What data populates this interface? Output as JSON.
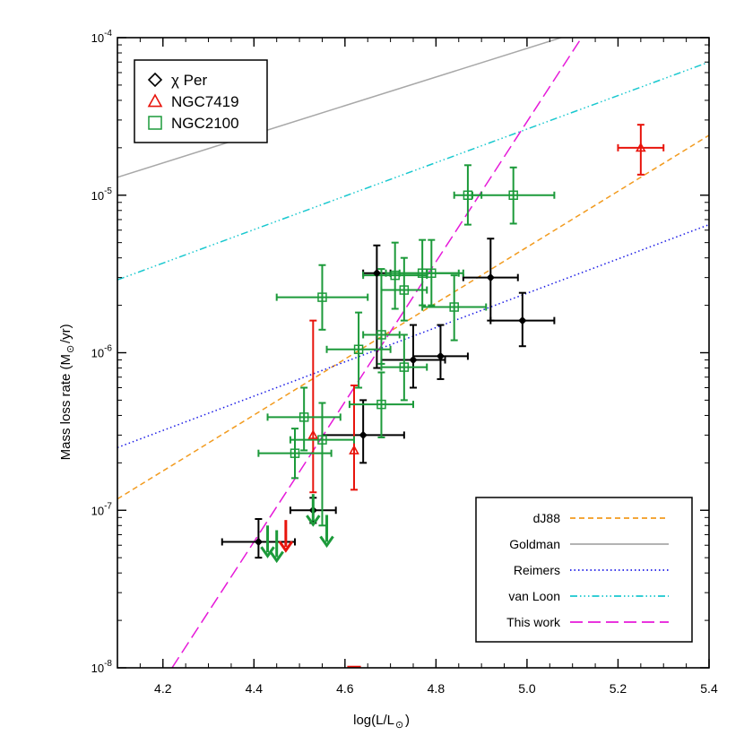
{
  "chart_data": {
    "type": "scatter",
    "xlabel": "log(L/L",
    "xlabel_sub": "⊙",
    "xlabel_end": ")",
    "ylabel": "Mass loss rate (M",
    "ylabel_sub": "⊙",
    "ylabel_end": "/yr)",
    "xlim": [
      4.1,
      5.4
    ],
    "ylim_log10": [
      -8,
      -4
    ],
    "y_scale": "log",
    "x_ticks": [
      4.2,
      4.4,
      4.6,
      4.8,
      5.0,
      5.2,
      5.4
    ],
    "x_tick_labels": [
      "4.2",
      "4.4",
      "4.6",
      "4.8",
      "5.0",
      "5.2",
      "5.4"
    ],
    "y_tick_labels": [
      {
        "exp": -8,
        "base": "10",
        "power": "-8"
      },
      {
        "exp": -7,
        "base": "10",
        "power": "-7"
      },
      {
        "exp": -6,
        "base": "10",
        "power": "-6"
      },
      {
        "exp": -5,
        "base": "10",
        "power": "-5"
      },
      {
        "exp": -4,
        "base": "10",
        "power": "-4"
      }
    ],
    "series": [
      {
        "name": "χ Per",
        "marker": "diamond",
        "color": "#000000",
        "points": [
          {
            "x": 4.41,
            "y": 6.3e-08,
            "xerr": 0.08,
            "ylo": 5e-08,
            "yhi": 8.8e-08
          },
          {
            "x": 4.53,
            "y": 1e-07,
            "xerr": 0.05,
            "ylo": 8.3e-08,
            "yhi": 1.2e-07
          },
          {
            "x": 4.64,
            "y": 3e-07,
            "xerr": 0.09,
            "ylo": 2e-07,
            "yhi": 5e-07
          },
          {
            "x": 4.67,
            "y": 3.2e-06,
            "xerr": 0.03,
            "ylo": 8e-07,
            "yhi": 4.8e-06
          },
          {
            "x": 4.75,
            "y": 9e-07,
            "xerr": 0.07,
            "ylo": 6e-07,
            "yhi": 1.5e-06
          },
          {
            "x": 4.81,
            "y": 9.5e-07,
            "xerr": 0.06,
            "ylo": 6.8e-07,
            "yhi": 1.5e-06
          },
          {
            "x": 4.92,
            "y": 3e-06,
            "xerr": 0.06,
            "ylo": 1.6e-06,
            "yhi": 5.3e-06
          },
          {
            "x": 4.99,
            "y": 1.6e-06,
            "xerr": 0.07,
            "ylo": 1.1e-06,
            "yhi": 2.4e-06
          }
        ],
        "upper_limits": []
      },
      {
        "name": "NGC7419",
        "marker": "triangle",
        "color": "#e8140c",
        "points": [
          {
            "x": 4.53,
            "y": 3e-07,
            "xerr": 0.0,
            "ylo": 1.3e-07,
            "yhi": 1.6e-06
          },
          {
            "x": 4.62,
            "y": 2.4e-07,
            "xerr": 0.0,
            "ylo": 1.35e-07,
            "yhi": 6.2e-07
          },
          {
            "x": 5.25,
            "y": 2e-05,
            "xerr": 0.05,
            "ylo": 1.35e-05,
            "yhi": 2.8e-05
          }
        ],
        "upper_limits": [
          {
            "x": 4.47,
            "y": 6.5e-08
          }
        ]
      },
      {
        "name": "NGC2100",
        "marker": "square",
        "color": "#1c9a3a",
        "points": [
          {
            "x": 4.49,
            "y": 2.3e-07,
            "xerr": 0.08,
            "ylo": 1.6e-07,
            "yhi": 3.3e-07
          },
          {
            "x": 4.51,
            "y": 3.9e-07,
            "xerr": 0.08,
            "ylo": 2.4e-07,
            "yhi": 6e-07
          },
          {
            "x": 4.55,
            "y": 2.8e-07,
            "xerr": 0.07,
            "ylo": 8e-08,
            "yhi": 4.8e-07
          },
          {
            "x": 4.55,
            "y": 2.25e-06,
            "xerr": 0.1,
            "ylo": 1.4e-06,
            "yhi": 3.6e-06
          },
          {
            "x": 4.63,
            "y": 1.05e-06,
            "xerr": 0.07,
            "ylo": 6e-07,
            "yhi": 1.8e-06
          },
          {
            "x": 4.68,
            "y": 1.3e-06,
            "xerr": 0.04,
            "ylo": 8.5e-07,
            "yhi": 3.4e-06
          },
          {
            "x": 4.68,
            "y": 4.7e-07,
            "xerr": 0.07,
            "ylo": 2.9e-07,
            "yhi": 7.5e-07
          },
          {
            "x": 4.71,
            "y": 3.1e-06,
            "xerr": 0.07,
            "ylo": 1.9e-06,
            "yhi": 5e-06
          },
          {
            "x": 4.73,
            "y": 2.5e-06,
            "xerr": 0.05,
            "ylo": 1.6e-06,
            "yhi": 4e-06
          },
          {
            "x": 4.73,
            "y": 8.1e-07,
            "xerr": 0.05,
            "ylo": 5e-07,
            "yhi": 1.3e-06
          },
          {
            "x": 4.77,
            "y": 3.2e-06,
            "xerr": 0.08,
            "ylo": 2e-06,
            "yhi": 5.2e-06
          },
          {
            "x": 4.79,
            "y": 3.2e-06,
            "xerr": 0.07,
            "ylo": 2e-06,
            "yhi": 5.2e-06
          },
          {
            "x": 4.84,
            "y": 1.95e-06,
            "xerr": 0.07,
            "ylo": 1.2e-06,
            "yhi": 3.1e-06
          },
          {
            "x": 4.87,
            "y": 1e-05,
            "xerr": 0.03,
            "ylo": 6.5e-06,
            "yhi": 1.55e-05
          },
          {
            "x": 4.97,
            "y": 1e-05,
            "xerr": 0.09,
            "ylo": 6.6e-06,
            "yhi": 1.5e-05
          }
        ],
        "upper_limits": [
          {
            "x": 4.43,
            "y": 6e-08
          },
          {
            "x": 4.45,
            "y": 5.6e-08
          },
          {
            "x": 4.53,
            "y": 9.5e-08
          },
          {
            "x": 4.56,
            "y": 7e-08
          }
        ]
      }
    ],
    "lines": [
      {
        "name": "dJ88",
        "color": "#f29b1f",
        "dash": "6,4",
        "x": [
          4.1,
          5.4
        ],
        "y": [
          1.18e-07,
          2.4e-05
        ]
      },
      {
        "name": "Goldman",
        "color": "#a8a8a8",
        "dash": "",
        "x": [
          4.1,
          5.075
        ],
        "y": [
          1.3e-05,
          0.0001
        ]
      },
      {
        "name": "Reimers",
        "color": "#1a1ae6",
        "dash": "1.5,3",
        "x": [
          4.1,
          5.4
        ],
        "y": [
          2.5e-07,
          6.5e-06
        ]
      },
      {
        "name": "van Loon",
        "color": "#19c8cf",
        "dash": "8,3,1.5,3,1.5,3,1.5,3",
        "x": [
          4.1,
          5.4
        ],
        "y": [
          2.9e-06,
          7e-05
        ]
      },
      {
        "name": "This work",
        "color": "#e619d9",
        "dash": "14,6",
        "x": [
          4.22,
          5.12
        ],
        "y": [
          1e-08,
          0.0001
        ]
      }
    ],
    "legend_markers_position": "top-left",
    "legend_lines_position": "bottom-right"
  }
}
